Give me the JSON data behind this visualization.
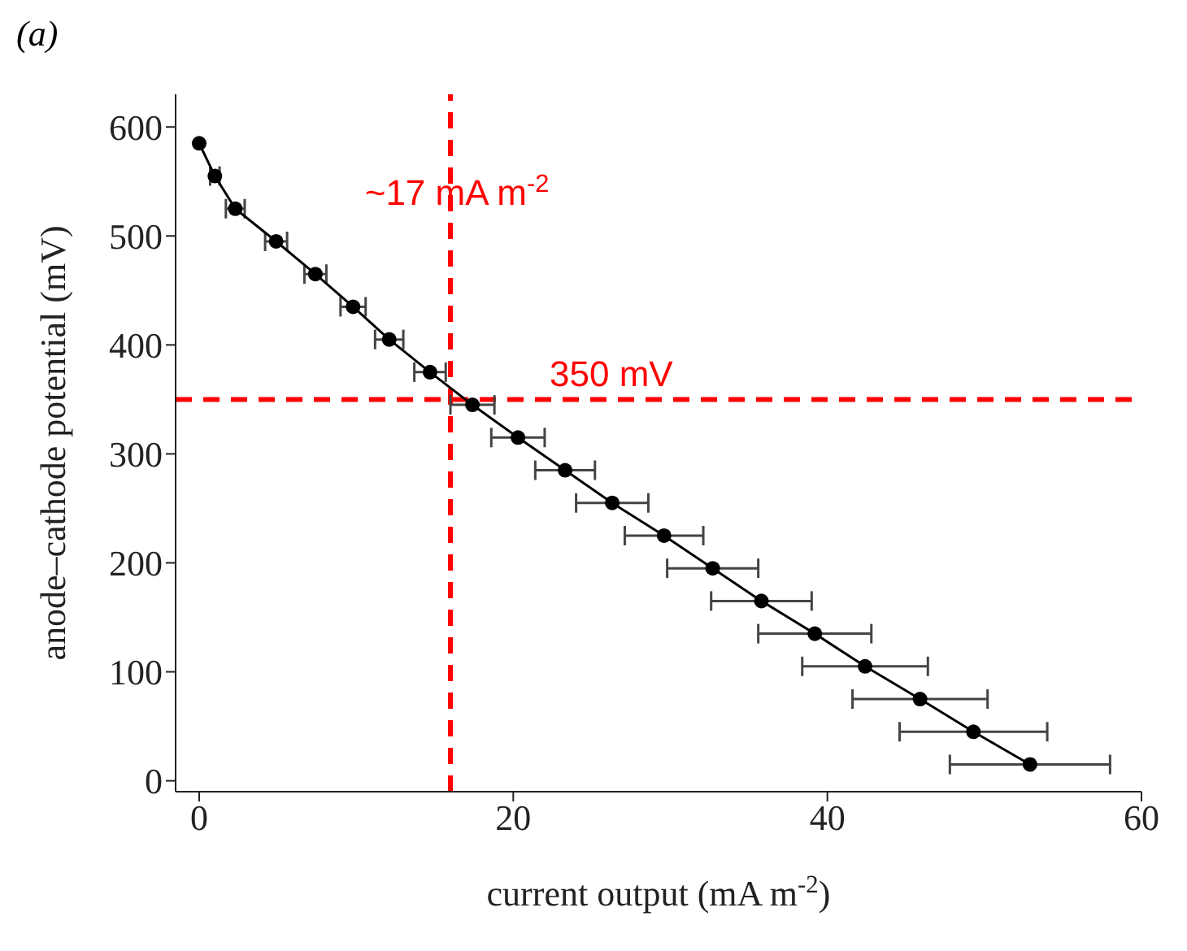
{
  "chart_data": {
    "type": "line",
    "title": "(a)",
    "xlabel": "current output (mA m$^{-2}$)",
    "ylabel": "anode–cathode potential (mV)",
    "x": [
      0,
      1.0,
      2.3,
      4.9,
      7.4,
      9.8,
      12.1,
      14.7,
      17.4,
      20.3,
      23.3,
      26.3,
      29.6,
      32.7,
      35.8,
      39.2,
      42.4,
      45.9,
      49.3,
      52.9
    ],
    "series": [
      {
        "color": "#000000",
        "values": [
          585,
          555,
          525,
          495,
          465,
          435,
          405,
          375,
          345,
          315,
          285,
          255,
          225,
          195,
          165,
          135,
          105,
          75,
          45,
          15
        ],
        "xerrors": [
          null,
          0.3,
          0.6,
          0.7,
          0.7,
          0.8,
          0.9,
          1.0,
          1.4,
          1.7,
          1.9,
          2.3,
          2.5,
          2.9,
          3.2,
          3.6,
          4.0,
          4.3,
          4.7,
          5.1
        ]
      }
    ],
    "xlim": [
      -1.5,
      60
    ],
    "xticks": [
      0,
      20,
      40,
      60
    ],
    "ylim": [
      -10,
      630
    ],
    "yticks": [
      0,
      100,
      200,
      300,
      400,
      500,
      600
    ],
    "grid": false,
    "legend": false,
    "marker": "circle",
    "line_style": "solid",
    "ref_lines": [
      {
        "axis": "x",
        "value": 16,
        "label": "~17 mA m$^{-2}$",
        "color": "#ff0000",
        "line_style": "dashed"
      },
      {
        "axis": "y",
        "value": 350,
        "label": "350 mV",
        "color": "#ff0000",
        "line_style": "dashed"
      }
    ]
  }
}
